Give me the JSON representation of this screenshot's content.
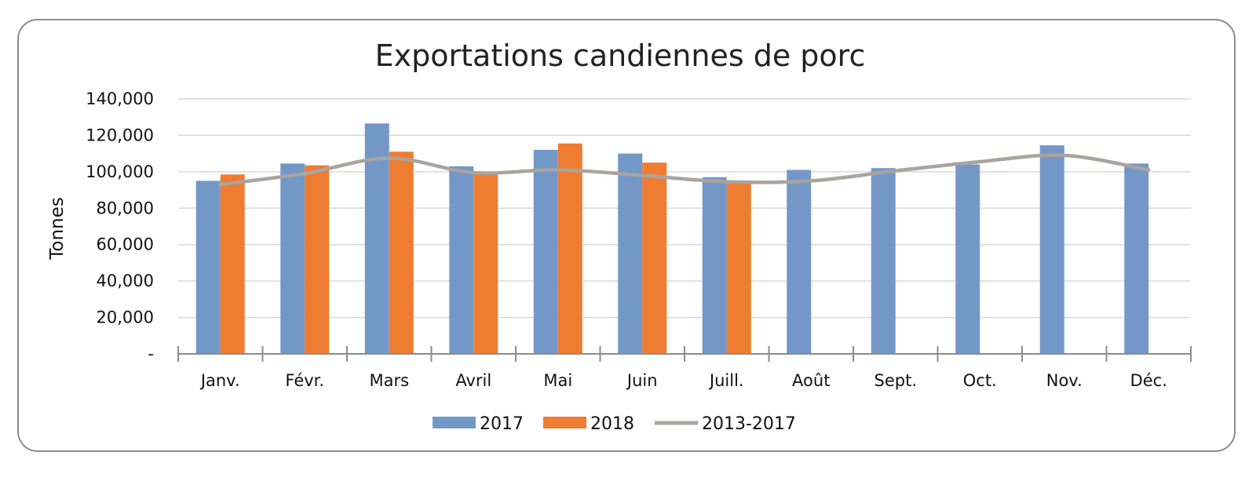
{
  "chart_data": {
    "type": "bar",
    "title": "Exportations candiennes de porc",
    "xlabel": "",
    "ylabel": "Tonnes",
    "categories": [
      "Janv.",
      "Févr.",
      "Mars",
      "Avril",
      "Mai",
      "Juin",
      "Juill.",
      "Août",
      "Sept.",
      "Oct.",
      "Nov.",
      "Déc."
    ],
    "ylim": [
      0,
      140000
    ],
    "yticks": [
      0,
      20000,
      40000,
      60000,
      80000,
      100000,
      120000,
      140000
    ],
    "ytick_labels": [
      "-",
      "20,000",
      "40,000",
      "60,000",
      "80,000",
      "100,000",
      "120,000",
      "140,000"
    ],
    "grid": true,
    "legend_position": "bottom",
    "series": [
      {
        "name": "2017",
        "kind": "bar",
        "color": "#7398c8",
        "values": [
          95000,
          104500,
          126500,
          103000,
          112000,
          110000,
          97000,
          101000,
          102000,
          104000,
          114500,
          104500
        ]
      },
      {
        "name": "2018",
        "kind": "bar",
        "color": "#ee7c31",
        "values": [
          98500,
          103500,
          111000,
          100000,
          115500,
          105000,
          95000,
          null,
          null,
          null,
          null,
          null
        ]
      },
      {
        "name": "2013-2017",
        "kind": "line",
        "color": "#aaa49e",
        "values": [
          93000,
          99000,
          107500,
          99500,
          101000,
          98000,
          94500,
          95000,
          100500,
          105500,
          109000,
          101000
        ]
      }
    ]
  }
}
